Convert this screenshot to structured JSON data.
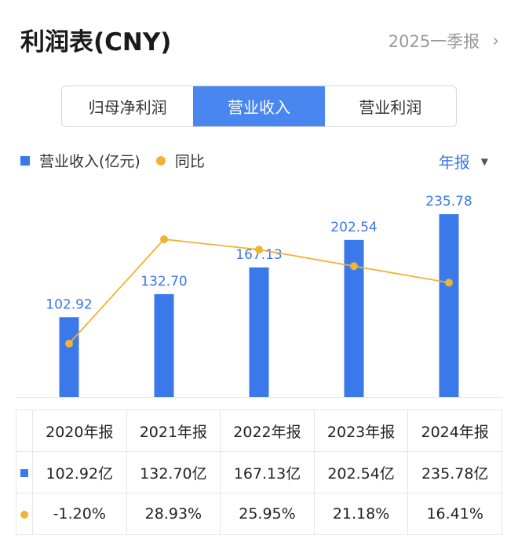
{
  "header": {
    "title": "利润表(CNY)",
    "period": "2025一季报",
    "chevron_icon": "chevron-right-icon"
  },
  "tabs": [
    {
      "label": "归母净利润",
      "active": false
    },
    {
      "label": "营业收入",
      "active": true
    },
    {
      "label": "营业利润",
      "active": false
    }
  ],
  "legend": {
    "bar_label": "营业收入(亿元)",
    "line_label": "同比",
    "period_select": "年报"
  },
  "colors": {
    "bar": "#3b78ea",
    "line": "#f2b233",
    "positive": "#e54d4d",
    "negative": "#2eaa6a",
    "active_tab": "#4a86f0"
  },
  "chart_data": {
    "type": "bar",
    "categories": [
      "2020年报",
      "2021年报",
      "2022年报",
      "2023年报",
      "2024年报"
    ],
    "series": [
      {
        "name": "营业收入(亿元)",
        "type": "bar",
        "values": [
          102.92,
          132.7,
          167.13,
          202.54,
          235.78
        ],
        "labels": [
          "102.92",
          "132.70",
          "167.13",
          "202.54",
          "235.78"
        ]
      },
      {
        "name": "同比",
        "type": "line",
        "values": [
          -1.2,
          28.93,
          25.95,
          21.18,
          16.41
        ]
      }
    ],
    "grid": false
  },
  "table": {
    "headers": [
      "2020年报",
      "2021年报",
      "2022年报",
      "2023年报",
      "2024年报"
    ],
    "revenue_row": [
      "102.92亿",
      "132.70亿",
      "167.13亿",
      "202.54亿",
      "235.78亿"
    ],
    "yoy_row": [
      "-1.20%",
      "28.93%",
      "25.95%",
      "21.18%",
      "16.41%"
    ]
  }
}
